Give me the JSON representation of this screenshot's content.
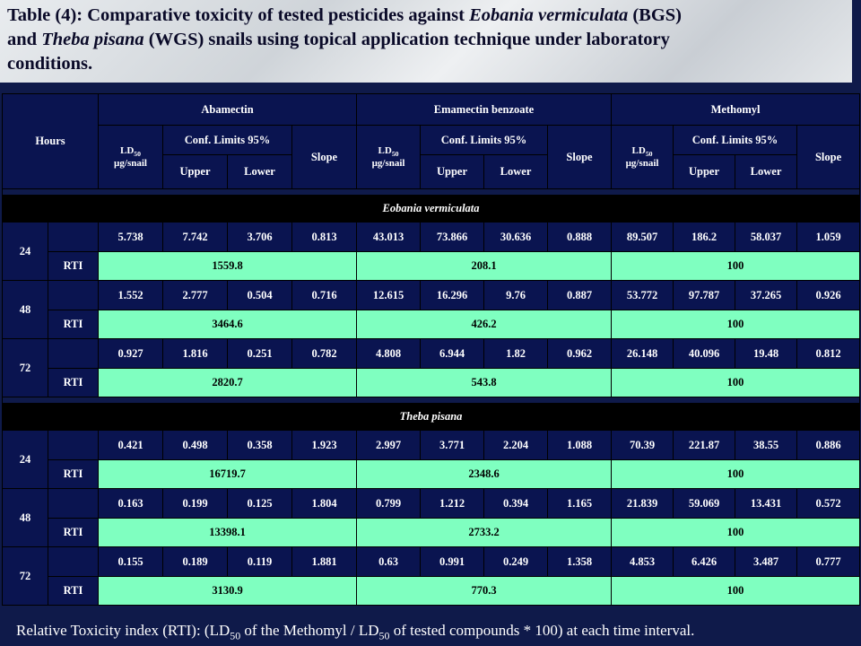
{
  "title": {
    "line1_a": "Table (4):  Comparative toxicity of  tested pesticides against ",
    "line1_species": "Eobania vermiculata",
    "line1_b": "  (BGS)",
    "line2_a": "and ",
    "line2_species": "Theba pisana",
    "line2_b": " (WGS) snails using topical  application technique under laboratory",
    "line3": "conditions."
  },
  "header": {
    "hours": "Hours",
    "compounds": [
      "Abamectin",
      "Emamectin benzoate",
      "Methomyl"
    ],
    "ld50": "LD",
    "ld50_sub": "50",
    "ld50_unit": "µg/snail",
    "conf": "Conf. Limits 95%",
    "upper": "Upper",
    "lower": "Lower",
    "slope": "Slope"
  },
  "rti_label": "RTI",
  "sections": [
    {
      "name": "Eobania vermiculata",
      "rows": [
        {
          "hour": "24",
          "values": [
            "5.738",
            "7.742",
            "3.706",
            "0.813",
            "43.013",
            "73.866",
            "30.636",
            "0.888",
            "89.507",
            "186.2",
            "58.037",
            "1.059"
          ],
          "rti": [
            "1559.8",
            "208.1",
            "100"
          ]
        },
        {
          "hour": "48",
          "values": [
            "1.552",
            "2.777",
            "0.504",
            "0.716",
            "12.615",
            "16.296",
            "9.76",
            "0.887",
            "53.772",
            "97.787",
            "37.265",
            "0.926"
          ],
          "rti": [
            "3464.6",
            "426.2",
            "100"
          ]
        },
        {
          "hour": "72",
          "values": [
            "0.927",
            "1.816",
            "0.251",
            "0.782",
            "4.808",
            "6.944",
            "1.82",
            "0.962",
            "26.148",
            "40.096",
            "19.48",
            "0.812"
          ],
          "rti": [
            "2820.7",
            "543.8",
            "100"
          ]
        }
      ]
    },
    {
      "name": "Theba pisana",
      "rows": [
        {
          "hour": "24",
          "values": [
            "0.421",
            "0.498",
            "0.358",
            "1.923",
            "2.997",
            "3.771",
            "2.204",
            "1.088",
            "70.39",
            "221.87",
            "38.55",
            "0.886"
          ],
          "rti": [
            "16719.7",
            "2348.6",
            "100"
          ]
        },
        {
          "hour": "48",
          "values": [
            "0.163",
            "0.199",
            "0.125",
            "1.804",
            "0.799",
            "1.212",
            "0.394",
            "1.165",
            "21.839",
            "59.069",
            "13.431",
            "0.572"
          ],
          "rti": [
            "13398.1",
            "2733.2",
            "100"
          ]
        },
        {
          "hour": "72",
          "values": [
            "0.155",
            "0.189",
            "0.119",
            "1.881",
            "0.63",
            "0.991",
            "0.249",
            "1.358",
            "4.853",
            "6.426",
            "3.487",
            "0.777"
          ],
          "rti": [
            "3130.9",
            "770.3",
            "100"
          ]
        }
      ]
    }
  ],
  "footer": {
    "a": "Relative Toxicity index (RTI):  (LD",
    "sub1": "50",
    "b": " of the Methomyl / LD",
    "sub2": "50",
    "c": " of tested compounds * 100) at each time interval."
  }
}
